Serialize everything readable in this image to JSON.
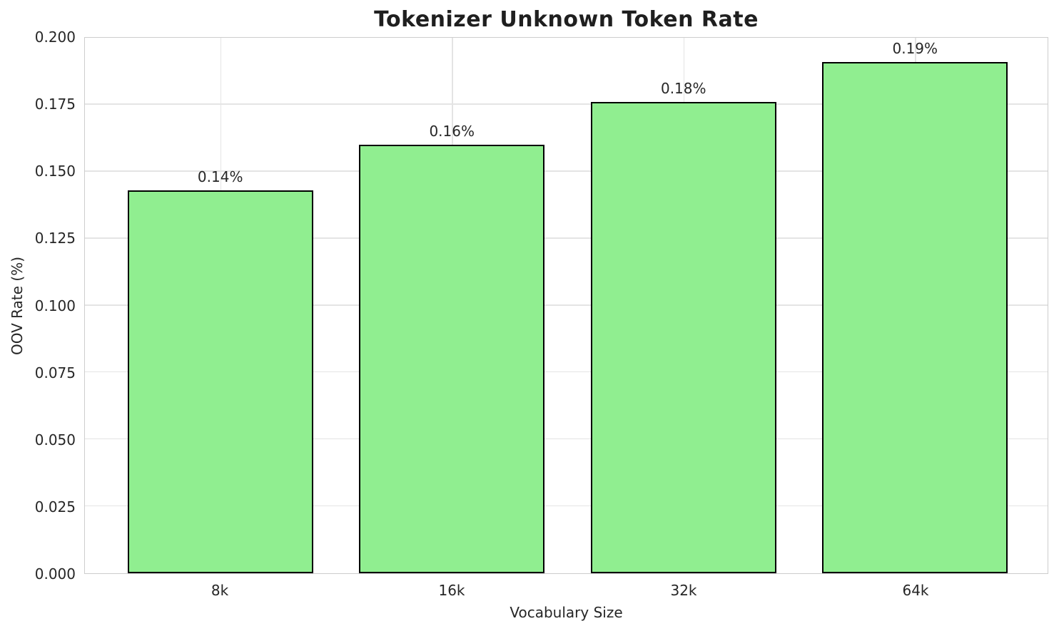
{
  "chart_data": {
    "type": "bar",
    "title": "Tokenizer Unknown Token Rate",
    "xlabel": "Vocabulary Size",
    "ylabel": "OOV Rate (%)",
    "categories": [
      "8k",
      "16k",
      "32k",
      "64k"
    ],
    "values": [
      0.143,
      0.16,
      0.176,
      0.191
    ],
    "bar_labels": [
      "0.14%",
      "0.16%",
      "0.18%",
      "0.19%"
    ],
    "ylim": [
      0,
      0.2
    ],
    "yticks": [
      0,
      0.025,
      0.05,
      0.075,
      0.1,
      0.125,
      0.15,
      0.175,
      0.2
    ],
    "ytick_labels": [
      "0.000",
      "0.025",
      "0.050",
      "0.075",
      "0.100",
      "0.125",
      "0.150",
      "0.175",
      "0.200"
    ],
    "grid": true,
    "legend": null,
    "bar_color": "#90EE90",
    "bar_edge_color": "#000000",
    "grid_color": "#e4e4e4",
    "spine_color": "#cdcdcd",
    "text_color": "#262626"
  }
}
